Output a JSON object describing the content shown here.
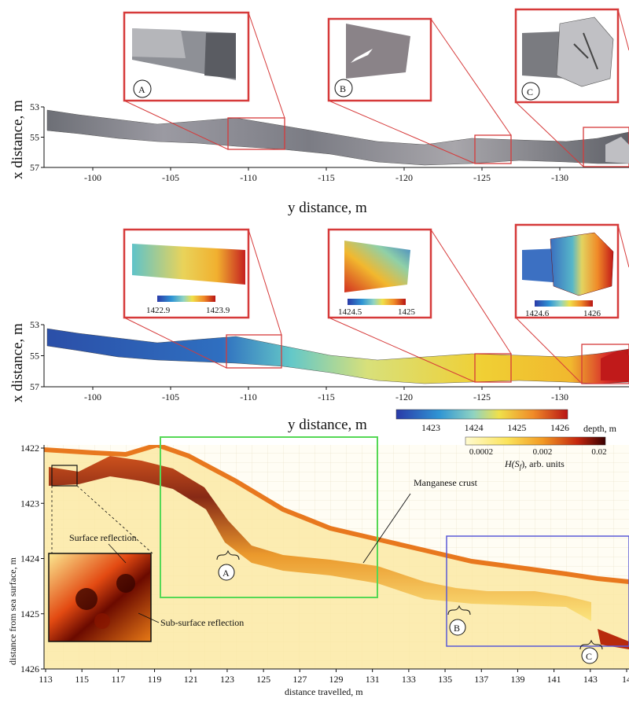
{
  "panels": {
    "top": {
      "ylabel": "x distance, m",
      "xlabel": "y distance, m",
      "yticks": [
        "53",
        "55",
        "57"
      ],
      "xticks": [
        "-100",
        "-105",
        "-110",
        "-115",
        "-120",
        "-125",
        "-130"
      ],
      "insets": [
        {
          "label": "A"
        },
        {
          "label": "B"
        },
        {
          "label": "C"
        }
      ]
    },
    "middle": {
      "ylabel": "x distance, m",
      "xlabel": "y distance, m",
      "yticks": [
        "53",
        "55",
        "57"
      ],
      "xticks": [
        "-100",
        "-105",
        "-110",
        "-115",
        "-120",
        "-125",
        "-130"
      ],
      "insets": [
        {
          "min": "1422.9",
          "max": "1423.9"
        },
        {
          "min": "1424.5",
          "max": "1425"
        },
        {
          "min": "1424.6",
          "max": "1426"
        }
      ],
      "depth_colorbar": {
        "ticks": [
          "1423",
          "1424",
          "1425",
          "1426"
        ],
        "label": "depth, m"
      }
    },
    "bottom": {
      "ylabel": "distance from sea surface, m",
      "xlabel": "distance travelled, m",
      "yticks": [
        "1422",
        "1423",
        "1424",
        "1425",
        "1426"
      ],
      "xticks": [
        "113",
        "115",
        "117",
        "119",
        "121",
        "123",
        "125",
        "127",
        "129",
        "131",
        "133",
        "135",
        "137",
        "139",
        "141",
        "143",
        "14"
      ],
      "annotation_crust": "Manganese crust",
      "annotation_surface": "Surface reflection",
      "annotation_subsurface": "Sub-surface reflection",
      "markers": [
        "A",
        "B",
        "C"
      ],
      "h_colorbar": {
        "ticks": [
          "0.0002",
          "0.002",
          "0.02"
        ],
        "label": "H(S",
        "label_sub": "f",
        "label_suffix": "), arb. units"
      }
    }
  },
  "colors": {
    "inset_frame": "#d63a3a",
    "green_box": "#55d855",
    "blue_box": "#5a5ad6",
    "surface_orange": "#e8781e"
  }
}
